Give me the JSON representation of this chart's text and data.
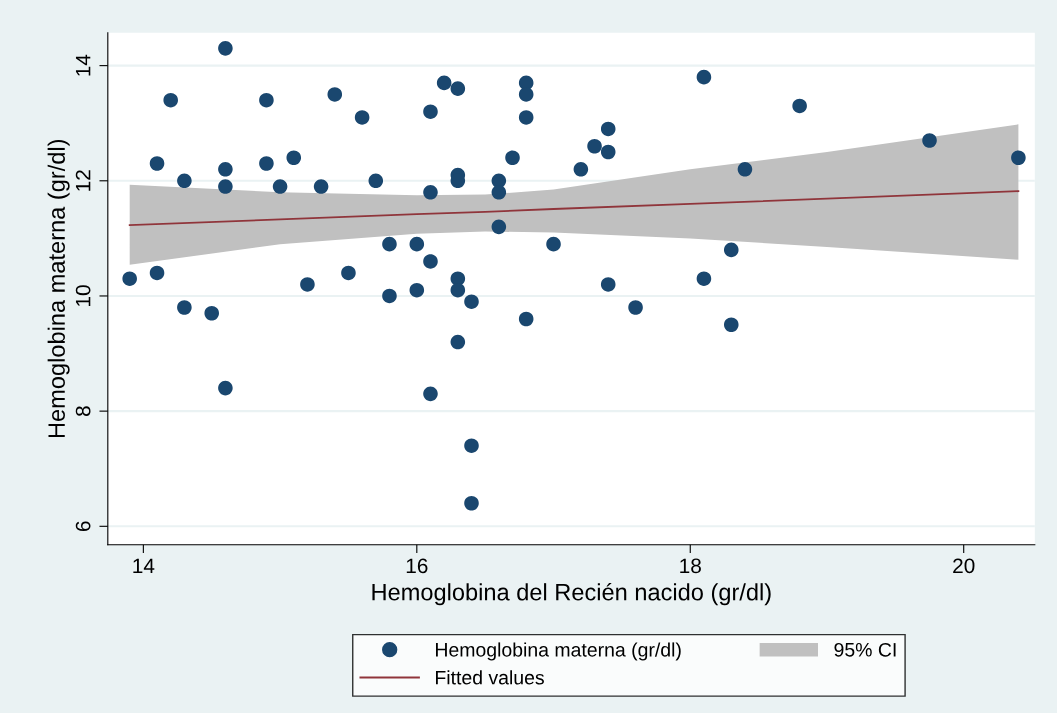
{
  "chart_data": {
    "type": "scatter",
    "xlabel": "Hemoglobina del Recién nacido (gr/dl)",
    "ylabel": "Hemoglobina materna (gr/dl)",
    "xlim": [
      13.74,
      20.52
    ],
    "ylim": [
      5.68,
      14.57
    ],
    "xticks": [
      14,
      16,
      18,
      20
    ],
    "yticks": [
      6,
      8,
      10,
      12,
      14
    ],
    "grid": "y",
    "legend": "bottom",
    "series": [
      {
        "name": "Hemoglobina materna (gr/dl)",
        "marker": "circle",
        "color": "#1a476f",
        "x": [
          13.9,
          14.1,
          14.1,
          14.2,
          14.3,
          14.3,
          14.5,
          14.6,
          14.6,
          14.6,
          14.6,
          14.9,
          14.9,
          15.0,
          15.1,
          15.2,
          15.3,
          15.4,
          15.5,
          15.6,
          15.7,
          15.8,
          15.8,
          16.0,
          16.0,
          16.1,
          16.1,
          16.1,
          16.1,
          16.2,
          16.3,
          16.3,
          16.3,
          16.3,
          16.3,
          16.3,
          16.4,
          16.4,
          16.4,
          16.6,
          16.6,
          16.6,
          16.7,
          16.8,
          16.8,
          16.8,
          16.8,
          17.0,
          17.2,
          17.3,
          17.4,
          17.4,
          17.4,
          17.6,
          18.1,
          18.1,
          18.3,
          18.3,
          18.4,
          18.8,
          19.75,
          20.4
        ],
        "values": [
          10.3,
          10.4,
          12.3,
          13.4,
          12.0,
          9.8,
          9.7,
          14.3,
          12.2,
          11.9,
          8.4,
          13.4,
          12.3,
          11.9,
          12.4,
          10.2,
          11.9,
          13.5,
          10.4,
          13.1,
          12.0,
          10.9,
          10.0,
          10.9,
          10.1,
          11.8,
          10.6,
          13.2,
          8.3,
          13.7,
          13.6,
          12.1,
          12.0,
          10.3,
          10.1,
          9.2,
          9.9,
          7.4,
          6.4,
          12.0,
          11.8,
          11.2,
          12.4,
          13.7,
          13.5,
          13.1,
          9.6,
          10.9,
          12.2,
          12.6,
          12.9,
          12.5,
          10.2,
          9.8,
          13.8,
          10.3,
          10.8,
          9.5,
          12.2,
          13.3,
          12.7,
          12.4
        ]
      },
      {
        "type": "line",
        "name": "Fitted values",
        "color": "#90353b",
        "line_style": "solid",
        "marker": "none",
        "x": [
          13.9,
          15,
          16,
          16.5,
          17,
          18,
          19,
          20.4
        ],
        "values": [
          11.23,
          11.33,
          11.42,
          11.46,
          11.51,
          11.6,
          11.69,
          11.82
        ],
        "lower": [
          10.54,
          10.9,
          11.08,
          11.12,
          11.1,
          11.0,
          10.85,
          10.63
        ],
        "upper": [
          11.93,
          11.8,
          11.75,
          11.76,
          11.85,
          12.2,
          12.5,
          12.98
        ]
      }
    ],
    "annotations": [
      "95% CI"
    ]
  }
}
